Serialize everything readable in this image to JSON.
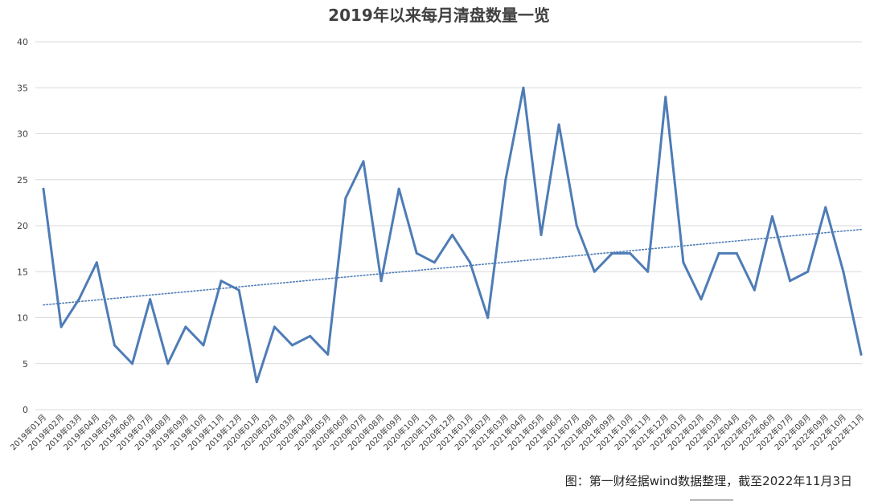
{
  "chart_data": {
    "type": "line",
    "title": "2019年以来每月清盘数量一览",
    "xlabel": "",
    "ylabel": "",
    "ylim": [
      0,
      40
    ],
    "yticks": [
      "0",
      "5",
      "10",
      "15",
      "20",
      "25",
      "30",
      "35",
      "40"
    ],
    "grid": true,
    "categories": [
      "2019年01月",
      "2019年02月",
      "2019年03月",
      "2019年04月",
      "2019年05月",
      "2019年06月",
      "2019年07月",
      "2019年08月",
      "2019年09月",
      "2019年10月",
      "2019年11月",
      "2019年12月",
      "2020年01月",
      "2020年02月",
      "2020年03月",
      "2020年04月",
      "2020年05月",
      "2020年06月",
      "2020年07月",
      "2020年08月",
      "2020年09月",
      "2020年10月",
      "2020年11月",
      "2020年12月",
      "2021年01月",
      "2021年02月",
      "2021年03月",
      "2021年04月",
      "2021年05月",
      "2021年06月",
      "2021年07月",
      "2021年08月",
      "2021年09月",
      "2021年10月",
      "2021年11月",
      "2021年12月",
      "2022年01月",
      "2022年02月",
      "2022年03月",
      "2022年04月",
      "2022年05月",
      "2022年06月",
      "2022年07月",
      "2022年08月",
      "2022年09月",
      "2022年10月",
      "2022年11月"
    ],
    "series": [
      {
        "color": "#4e7cb6",
        "values": [
          24,
          9,
          12,
          16,
          7,
          5,
          12,
          5,
          9,
          7,
          14,
          13,
          3,
          9,
          7,
          8,
          6,
          23,
          27,
          14,
          24,
          17,
          16,
          19,
          16,
          10,
          25,
          35,
          19,
          31,
          20,
          15,
          17,
          17,
          15,
          34,
          16,
          12,
          17,
          17,
          13,
          21,
          14,
          15,
          22,
          15,
          6
        ]
      }
    ],
    "trendline": {
      "type": "linear",
      "style": "dotted",
      "color": "#4e7cb6"
    }
  },
  "source_note": "图：第一财经据wind数据整理，截至2022年11月3日"
}
